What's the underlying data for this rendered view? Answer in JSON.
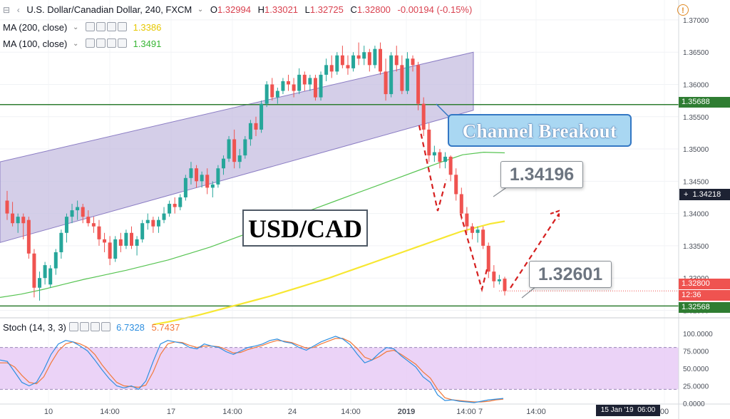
{
  "header": {
    "symbol": "U.S. Dollar/Canadian Dollar, 240, FXCM",
    "open_label": "O",
    "open": "1.32994",
    "high_label": "H",
    "high": "1.33021",
    "low_label": "L",
    "low": "1.32725",
    "close_label": "C",
    "close": "1.32800",
    "change": "-0.00194 (-0.15%)",
    "ma200_label": "MA (200, close)",
    "ma200_value": "1.3386",
    "ma100_label": "MA (100, close)",
    "ma100_value": "1.3491",
    "stoch_label": "Stoch (14, 3, 3)",
    "stoch_k": "6.7328",
    "stoch_d": "5.7437"
  },
  "colors": {
    "up": "#26a69a",
    "down": "#ef5350",
    "ma200": "#f7e732",
    "ma100": "#57c452",
    "channel_fill": "#c5bde0",
    "channel_line": "#8b7dc4",
    "hline": "#2f7d32",
    "stoch_k": "#2e8fe0",
    "stoch_d": "#f2793a",
    "stoch_band": "#e6c8f5",
    "breakout_fill": "#a9d7f2",
    "breakout_border": "#3377c4"
  },
  "price_axis": {
    "ticks": [
      "1.37000",
      "1.36500",
      "1.36000",
      "1.35500",
      "1.35000",
      "1.34500",
      "1.34000",
      "1.33500",
      "1.33000",
      "1.32500"
    ],
    "tag_resistance": "1.35688",
    "tag_crosshair": "1.34218",
    "tag_last": "1.32800",
    "tag_countdown": "12:36",
    "tag_support": "1.32568"
  },
  "stoch_axis": {
    "ticks": [
      "100.0000",
      "75.0000",
      "50.0000",
      "25.0000",
      "0.0000"
    ]
  },
  "time_axis": {
    "labels": [
      "10",
      "14:00",
      "17",
      "14:00",
      "24",
      "14:00",
      "2019",
      "14:00",
      "7",
      "14:00",
      "00"
    ],
    "crosshair_date": "15 Jan '19",
    "crosshair_time": "06:00"
  },
  "annotations": {
    "pair": "USD/CAD",
    "breakout": "Channel Breakout",
    "level_upper": "1.34196",
    "level_lower": "1.32601"
  },
  "chart_data": {
    "type": "candlestick",
    "ylim": [
      1.3245,
      1.3722
    ],
    "support": 1.32568,
    "resistance": 1.35688,
    "candles": [
      [
        1.342,
        1.3435,
        1.339,
        1.34
      ],
      [
        1.34,
        1.3418,
        1.338,
        1.3385
      ],
      [
        1.3385,
        1.34,
        1.337,
        1.3395
      ],
      [
        1.3395,
        1.34,
        1.336,
        1.3385
      ],
      [
        1.339,
        1.3395,
        1.333,
        1.3338
      ],
      [
        1.3338,
        1.3345,
        1.327,
        1.3285
      ],
      [
        1.3285,
        1.331,
        1.3265,
        1.33
      ],
      [
        1.33,
        1.3325,
        1.329,
        1.332
      ],
      [
        1.329,
        1.332,
        1.3285,
        1.3315
      ],
      [
        1.3315,
        1.3345,
        1.3305,
        1.334
      ],
      [
        1.334,
        1.3375,
        1.333,
        1.337
      ],
      [
        1.337,
        1.34,
        1.3355,
        1.3395
      ],
      [
        1.3395,
        1.3415,
        1.3385,
        1.3405
      ],
      [
        1.3405,
        1.342,
        1.339,
        1.341
      ],
      [
        1.341,
        1.3415,
        1.3385,
        1.3395
      ],
      [
        1.3395,
        1.3405,
        1.338,
        1.3385
      ],
      [
        1.3385,
        1.3395,
        1.337,
        1.338
      ],
      [
        1.338,
        1.339,
        1.335,
        1.336
      ],
      [
        1.336,
        1.337,
        1.334,
        1.3355
      ],
      [
        1.3355,
        1.3365,
        1.332,
        1.333
      ],
      [
        1.333,
        1.3365,
        1.3325,
        1.336
      ],
      [
        1.336,
        1.337,
        1.334,
        1.335
      ],
      [
        1.335,
        1.3375,
        1.3345,
        1.337
      ],
      [
        1.337,
        1.338,
        1.3345,
        1.335
      ],
      [
        1.335,
        1.3365,
        1.3335,
        1.336
      ],
      [
        1.336,
        1.339,
        1.3355,
        1.3385
      ],
      [
        1.3385,
        1.34,
        1.3375,
        1.339
      ],
      [
        1.339,
        1.3395,
        1.337,
        1.338
      ],
      [
        1.338,
        1.3395,
        1.337,
        1.339
      ],
      [
        1.339,
        1.341,
        1.3385,
        1.34
      ],
      [
        1.34,
        1.342,
        1.3395,
        1.3415
      ],
      [
        1.3415,
        1.3425,
        1.34,
        1.341
      ],
      [
        1.341,
        1.343,
        1.3405,
        1.3425
      ],
      [
        1.3425,
        1.346,
        1.342,
        1.3455
      ],
      [
        1.3455,
        1.348,
        1.3445,
        1.347
      ],
      [
        1.347,
        1.3475,
        1.344,
        1.345
      ],
      [
        1.345,
        1.3465,
        1.344,
        1.346
      ],
      [
        1.346,
        1.347,
        1.343,
        1.344
      ],
      [
        1.344,
        1.345,
        1.3425,
        1.3445
      ],
      [
        1.3445,
        1.3475,
        1.344,
        1.347
      ],
      [
        1.347,
        1.349,
        1.346,
        1.3485
      ],
      [
        1.3485,
        1.352,
        1.348,
        1.3515
      ],
      [
        1.3515,
        1.353,
        1.347,
        1.348
      ],
      [
        1.348,
        1.35,
        1.347,
        1.349
      ],
      [
        1.349,
        1.352,
        1.3485,
        1.3515
      ],
      [
        1.3515,
        1.3545,
        1.3505,
        1.354
      ],
      [
        1.354,
        1.355,
        1.352,
        1.353
      ],
      [
        1.353,
        1.3575,
        1.3525,
        1.357
      ],
      [
        1.357,
        1.3605,
        1.3565,
        1.36
      ],
      [
        1.36,
        1.361,
        1.3575,
        1.358
      ],
      [
        1.358,
        1.3595,
        1.357,
        1.359
      ],
      [
        1.359,
        1.361,
        1.3585,
        1.3605
      ],
      [
        1.3605,
        1.3615,
        1.359,
        1.36
      ],
      [
        1.36,
        1.361,
        1.358,
        1.359
      ],
      [
        1.359,
        1.3625,
        1.3585,
        1.3615
      ],
      [
        1.3615,
        1.362,
        1.359,
        1.36
      ],
      [
        1.36,
        1.3615,
        1.359,
        1.361
      ],
      [
        1.361,
        1.3615,
        1.3575,
        1.358
      ],
      [
        1.358,
        1.362,
        1.3575,
        1.3615
      ],
      [
        1.3615,
        1.364,
        1.3605,
        1.363
      ],
      [
        1.363,
        1.3645,
        1.361,
        1.362
      ],
      [
        1.362,
        1.365,
        1.3615,
        1.3645
      ],
      [
        1.3645,
        1.366,
        1.3625,
        1.363
      ],
      [
        1.363,
        1.3645,
        1.3615,
        1.3625
      ],
      [
        1.3625,
        1.365,
        1.362,
        1.3645
      ],
      [
        1.3645,
        1.3665,
        1.363,
        1.364
      ],
      [
        1.364,
        1.366,
        1.363,
        1.365
      ],
      [
        1.365,
        1.3655,
        1.362,
        1.363
      ],
      [
        1.363,
        1.366,
        1.3625,
        1.3655
      ],
      [
        1.3655,
        1.3665,
        1.3615,
        1.362
      ],
      [
        1.362,
        1.364,
        1.3575,
        1.3585
      ],
      [
        1.3585,
        1.365,
        1.358,
        1.3645
      ],
      [
        1.3645,
        1.366,
        1.362,
        1.363
      ],
      [
        1.363,
        1.3645,
        1.3585,
        1.359
      ],
      [
        1.359,
        1.365,
        1.3585,
        1.364
      ],
      [
        1.364,
        1.3645,
        1.362,
        1.363
      ],
      [
        1.363,
        1.3635,
        1.356,
        1.357
      ],
      [
        1.357,
        1.358,
        1.352,
        1.353
      ],
      [
        1.353,
        1.354,
        1.348,
        1.349
      ],
      [
        1.349,
        1.3505,
        1.348,
        1.3495
      ],
      [
        1.3495,
        1.35,
        1.347,
        1.348
      ],
      [
        1.348,
        1.3495,
        1.347,
        1.3488
      ],
      [
        1.3488,
        1.349,
        1.345,
        1.346
      ],
      [
        1.346,
        1.347,
        1.342,
        1.343
      ],
      [
        1.343,
        1.344,
        1.339,
        1.34
      ],
      [
        1.34,
        1.341,
        1.337,
        1.338
      ],
      [
        1.338,
        1.3385,
        1.336,
        1.337
      ],
      [
        1.337,
        1.338,
        1.3355,
        1.3375
      ],
      [
        1.3375,
        1.338,
        1.3345,
        1.335
      ],
      [
        1.335,
        1.3355,
        1.33,
        1.331
      ],
      [
        1.331,
        1.332,
        1.3285,
        1.3295
      ],
      [
        1.3295,
        1.3305,
        1.329,
        1.3298
      ],
      [
        1.3299,
        1.3302,
        1.3273,
        1.328
      ]
    ],
    "ma100": [
      1.327,
      1.3275,
      1.3282,
      1.329,
      1.3298,
      1.3305,
      1.3312,
      1.332,
      1.3328,
      1.3338,
      1.3348,
      1.336,
      1.3372,
      1.3384,
      1.3396,
      1.3408,
      1.342,
      1.3432,
      1.3444,
      1.3456,
      1.3468,
      1.348,
      1.3491,
      1.3495,
      1.3494
    ],
    "ma200": [
      1.3228,
      1.3232,
      1.3237,
      1.3242,
      1.3248,
      1.3254,
      1.326,
      1.3266,
      1.3272,
      1.3279,
      1.3286,
      1.3293,
      1.33,
      1.3308,
      1.3316,
      1.3324,
      1.3332,
      1.334,
      1.3348,
      1.3356,
      1.3364,
      1.3372,
      1.3378,
      1.3384,
      1.3388
    ],
    "stoch_k": [
      62,
      60,
      45,
      30,
      25,
      30,
      48,
      70,
      85,
      90,
      88,
      82,
      75,
      62,
      48,
      35,
      25,
      22,
      25,
      20,
      32,
      60,
      85,
      90,
      88,
      86,
      80,
      78,
      85,
      82,
      80,
      74,
      70,
      75,
      80,
      82,
      85,
      90,
      92,
      88,
      86,
      80,
      76,
      82,
      88,
      92,
      96,
      92,
      84,
      70,
      58,
      62,
      72,
      80,
      78,
      68,
      60,
      52,
      38,
      30,
      12,
      4,
      5,
      3,
      2,
      1,
      3,
      5,
      6,
      7
    ],
    "stoch_d": [
      58,
      58,
      52,
      40,
      30,
      28,
      38,
      58,
      75,
      85,
      88,
      85,
      80,
      70,
      55,
      42,
      30,
      25,
      24,
      23,
      26,
      45,
      70,
      85,
      88,
      87,
      83,
      80,
      82,
      82,
      81,
      77,
      72,
      73,
      77,
      80,
      83,
      87,
      90,
      89,
      87,
      83,
      79,
      80,
      85,
      89,
      93,
      93,
      88,
      78,
      66,
      62,
      67,
      74,
      76,
      70,
      63,
      56,
      45,
      36,
      20,
      8,
      5,
      4,
      3,
      2,
      2,
      3,
      5,
      6
    ],
    "channel_upper": [
      1.348,
      1.365
    ],
    "channel_lower": [
      1.3355,
      1.356
    ]
  }
}
